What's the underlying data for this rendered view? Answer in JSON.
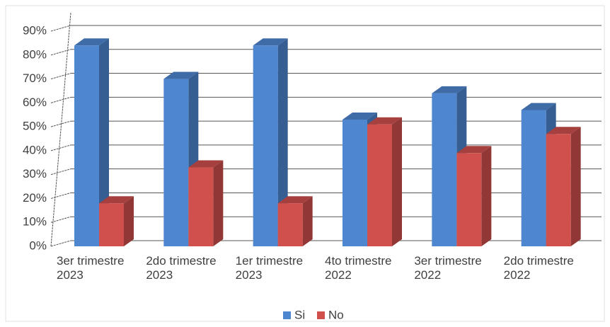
{
  "chart_data": {
    "type": "bar3d",
    "categories": [
      "3er trimestre 2023",
      "2do trimestre 2023",
      "1er trimestre 2023",
      "4to trimestre 2022",
      "3er trimestre 2022",
      "2do trimestre 2022"
    ],
    "series": [
      {
        "name": "Si",
        "color": "#4f86d0",
        "values": [
          84,
          70,
          84,
          53,
          64,
          57
        ]
      },
      {
        "name": "No",
        "color": "#cf504d",
        "values": [
          18,
          33,
          18,
          51,
          39,
          47
        ]
      }
    ],
    "ylim": [
      0,
      90
    ],
    "yticks": [
      {
        "value": 0,
        "label": "0%"
      },
      {
        "value": 10,
        "label": "10%"
      },
      {
        "value": 20,
        "label": "20%"
      },
      {
        "value": 30,
        "label": "30%"
      },
      {
        "value": 40,
        "label": "40%"
      },
      {
        "value": 50,
        "label": "50%"
      },
      {
        "value": 60,
        "label": "60%"
      },
      {
        "value": 70,
        "label": "70%"
      },
      {
        "value": 80,
        "label": "80%"
      },
      {
        "value": 90,
        "label": "90%"
      }
    ],
    "grid": true,
    "legend": "bottom"
  }
}
